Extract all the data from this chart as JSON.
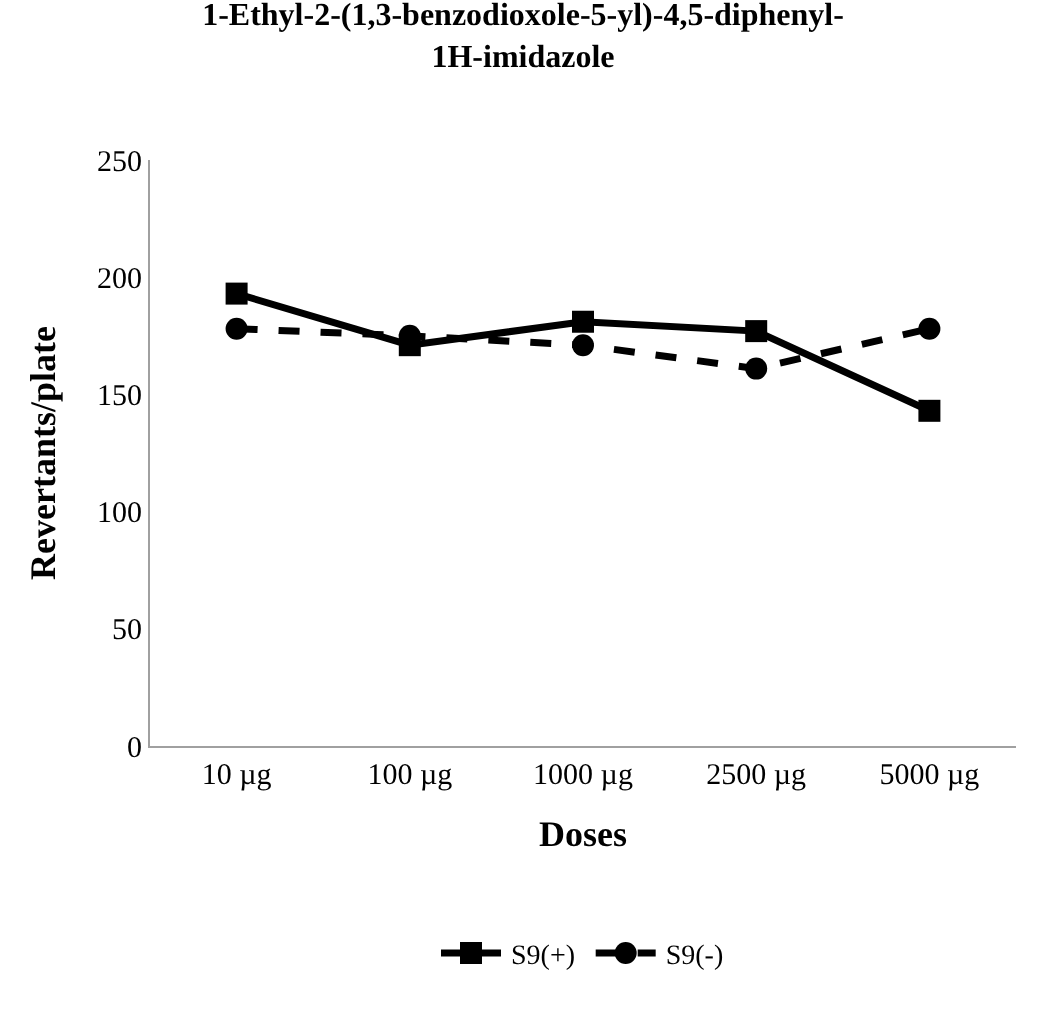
{
  "chart_data": {
    "type": "line",
    "title": "1-Ethyl-2-(1,3-benzodioxole-5-yl)-4,5-diphenyl-1H-imidazole",
    "xlabel": "Doses",
    "ylabel": "Revertants/plate",
    "categories": [
      "10 µg",
      "100 µg",
      "1000 µg",
      "2500 µg",
      "5000 µg"
    ],
    "series": [
      {
        "name": "S9(+)",
        "color": "#000000",
        "values": [
          193,
          171,
          181,
          177,
          143
        ],
        "marker": "square",
        "line_style": "solid"
      },
      {
        "name": "S9(-)",
        "color": "#000000",
        "values": [
          178,
          175,
          171,
          161,
          178
        ],
        "marker": "circle",
        "line_style": "dashed"
      }
    ],
    "ylim": [
      0,
      250
    ],
    "yticks": [
      0,
      50,
      100,
      150,
      200,
      250
    ],
    "grid": false,
    "legend": "bottom"
  }
}
